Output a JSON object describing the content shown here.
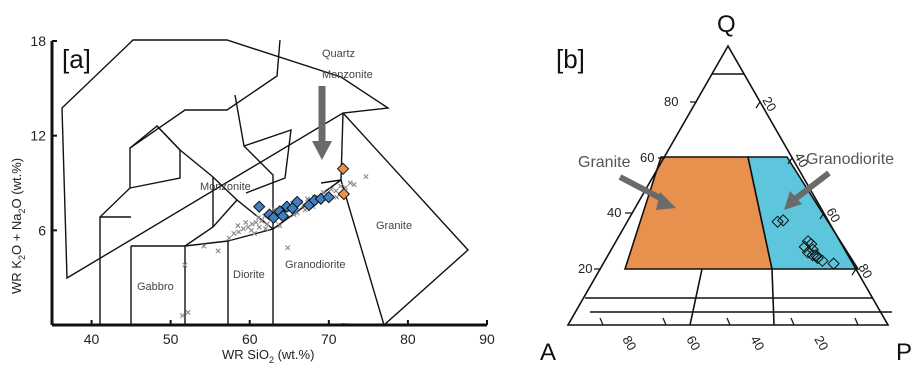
{
  "colors": {
    "granite_fill": "#e8914f",
    "granodiorite_fill": "#5ec6dc",
    "blue_marker": "#3f7fc4",
    "orange_marker": "#e8914f",
    "cross": "#888888",
    "arrow": "#6a6a6a"
  },
  "chart_data": [
    {
      "panel_label": "[a]",
      "type": "scatter",
      "xlabel_parts": [
        "WR SiO",
        "2",
        " (wt.%)"
      ],
      "ylabel_parts": [
        "WR K",
        "2",
        "O + Na",
        "2",
        "O (wt.%)"
      ],
      "xlim": [
        35,
        90
      ],
      "ylim": [
        0,
        18
      ],
      "xticks": [
        40,
        50,
        60,
        70,
        80,
        90
      ],
      "yticks": [
        6,
        12,
        18
      ],
      "field_labels": [
        "Gabbro",
        "Diorite",
        "Granodiorite",
        "Monzonite",
        "Granite",
        "Quartz",
        "Monzonite"
      ],
      "series": [
        {
          "marker": "cross",
          "points": [
            [
              51.8,
              3.8
            ],
            [
              51.5,
              0.6
            ],
            [
              52.2,
              0.8
            ],
            [
              54.2,
              5.0
            ],
            [
              56.0,
              4.7
            ],
            [
              57.4,
              5.5
            ],
            [
              58.0,
              5.8
            ],
            [
              58.6,
              5.9
            ],
            [
              59.2,
              6.1
            ],
            [
              59.8,
              6.2
            ],
            [
              60.3,
              6.4
            ],
            [
              60.8,
              6.5
            ],
            [
              61.1,
              6.8
            ],
            [
              61.5,
              6.6
            ],
            [
              61.9,
              6.9
            ],
            [
              62.3,
              7.0
            ],
            [
              62.7,
              7.1
            ],
            [
              63.1,
              7.3
            ],
            [
              63.5,
              6.9
            ],
            [
              63.9,
              7.4
            ],
            [
              64.3,
              7.2
            ],
            [
              64.7,
              7.6
            ],
            [
              65.1,
              7.3
            ],
            [
              65.4,
              7.7
            ],
            [
              65.9,
              7.5
            ],
            [
              66.4,
              7.8
            ],
            [
              66.8,
              7.6
            ],
            [
              67.3,
              8.0
            ],
            [
              67.8,
              7.9
            ],
            [
              68.2,
              8.1
            ],
            [
              68.7,
              8.0
            ],
            [
              69.3,
              8.4
            ],
            [
              69.8,
              8.3
            ],
            [
              70.3,
              8.6
            ],
            [
              70.9,
              8.5
            ],
            [
              71.5,
              8.8
            ],
            [
              72.1,
              8.7
            ],
            [
              72.7,
              9.0
            ],
            [
              73.2,
              8.9
            ],
            [
              74.7,
              9.4
            ],
            [
              60.2,
              6.0
            ],
            [
              61.2,
              6.2
            ],
            [
              62.2,
              6.4
            ],
            [
              63.2,
              6.6
            ],
            [
              64.2,
              6.8
            ],
            [
              58.5,
              6.3
            ],
            [
              59.5,
              6.5
            ],
            [
              66.0,
              7.1
            ],
            [
              67.0,
              7.3
            ],
            [
              60.6,
              5.8
            ],
            [
              62.0,
              6.1
            ],
            [
              63.8,
              6.3
            ],
            [
              65.6,
              7.0
            ],
            [
              68.0,
              7.5
            ],
            [
              64.8,
              4.9
            ],
            [
              71.0,
              8.1
            ]
          ]
        },
        {
          "marker": "blue-diamond",
          "points": [
            [
              61.2,
              7.5
            ],
            [
              62.5,
              7.0
            ],
            [
              63.0,
              6.8
            ],
            [
              63.8,
              7.2
            ],
            [
              64.2,
              6.9
            ],
            [
              64.7,
              7.5
            ],
            [
              65.4,
              7.4
            ],
            [
              66.0,
              7.8
            ],
            [
              67.5,
              7.6
            ],
            [
              68.2,
              7.9
            ],
            [
              69.0,
              8.0
            ],
            [
              70.0,
              8.1
            ]
          ]
        },
        {
          "marker": "orange-diamond",
          "points": [
            [
              71.8,
              9.9
            ],
            [
              71.9,
              8.3
            ]
          ]
        }
      ]
    },
    {
      "panel_label": "[b]",
      "type": "scatter",
      "vertices": [
        "Q",
        "A",
        "P"
      ],
      "left_ticks": [
        "80",
        "60",
        "40",
        "20"
      ],
      "right_ticks": [
        "20",
        "40",
        "60",
        "80"
      ],
      "bottom_ticks": [
        "80",
        "60",
        "40",
        "20"
      ],
      "regions": [
        {
          "name": "Granite",
          "color": "#e8914f"
        },
        {
          "name": "Granodiorite",
          "color": "#5ec6dc"
        }
      ],
      "series": [
        {
          "marker": "diamond",
          "points": [
            {
              "Q": 37,
              "P": 47
            },
            {
              "Q": 37.5,
              "P": 48.5
            }
          ]
        },
        {
          "marker": "diamond",
          "points": [
            {
              "Q": 28,
              "P": 60
            },
            {
              "Q": 26,
              "P": 62
            },
            {
              "Q": 30,
              "P": 60
            },
            {
              "Q": 25,
              "P": 64
            },
            {
              "Q": 24,
              "P": 66
            },
            {
              "Q": 27,
              "P": 63
            },
            {
              "Q": 23,
              "P": 68
            },
            {
              "Q": 25,
              "P": 65
            },
            {
              "Q": 29,
              "P": 61.5
            },
            {
              "Q": 22,
              "P": 72
            }
          ]
        }
      ]
    }
  ]
}
